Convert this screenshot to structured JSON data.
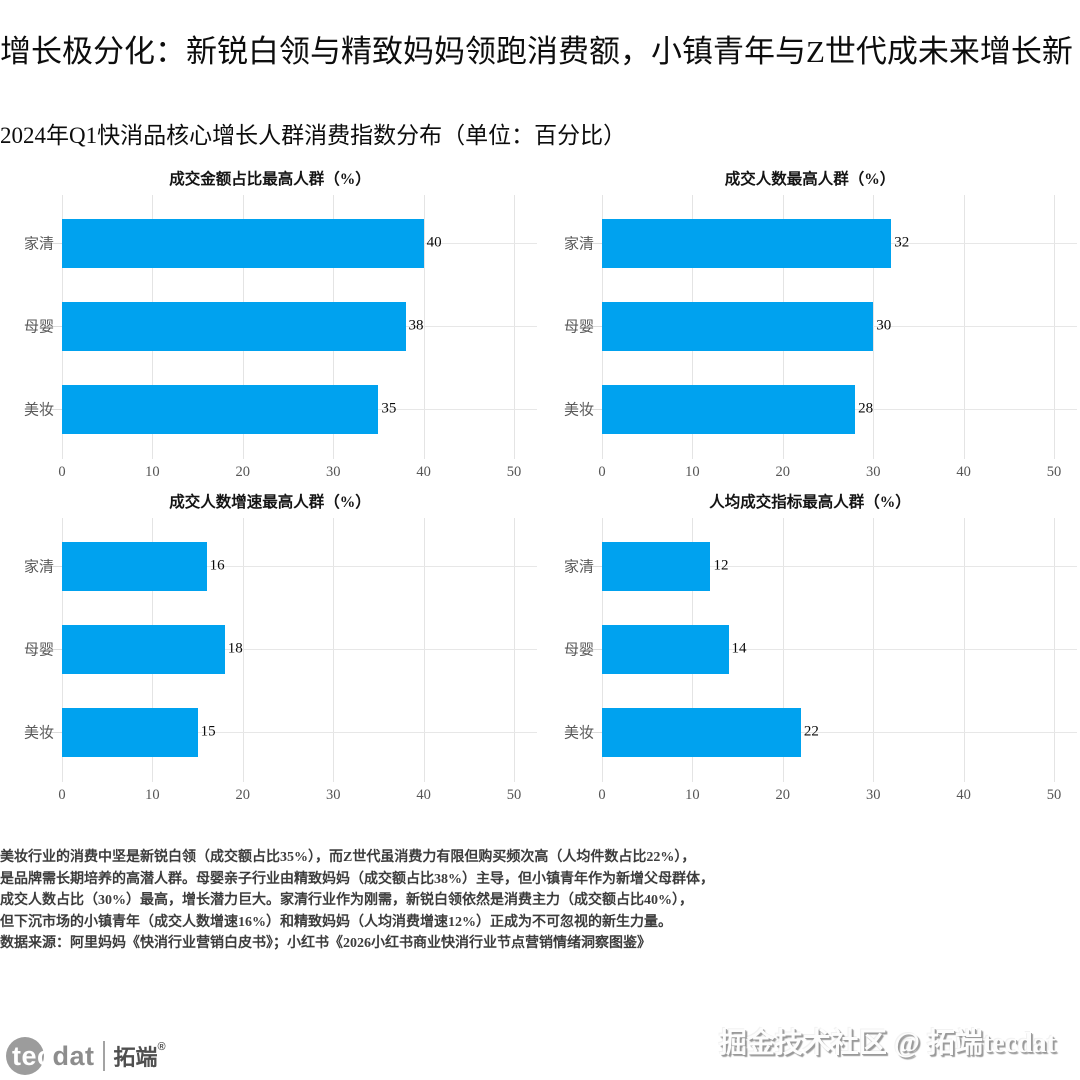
{
  "header": {
    "title": "增长极分化：新锐白领与精致妈妈领跑消费额，小镇青年与Z世代成未来增长新",
    "subtitle": "2024年Q1快消品核心增长人群消费指数分布（单位：百分比）"
  },
  "chart_data": [
    {
      "type": "bar",
      "orientation": "horizontal",
      "title": "成交金额占比最高人群（%）",
      "categories": [
        "家清",
        "母婴",
        "美妆"
      ],
      "values": [
        40,
        38,
        35
      ],
      "xlim": [
        0,
        50
      ],
      "xticks": [
        0,
        10,
        20,
        30,
        40,
        50
      ],
      "grid": true,
      "legend": "none"
    },
    {
      "type": "bar",
      "orientation": "horizontal",
      "title": "成交人数最高人群（%）",
      "categories": [
        "家清",
        "母婴",
        "美妆"
      ],
      "values": [
        32,
        30,
        28
      ],
      "xlim": [
        0,
        50
      ],
      "xticks": [
        0,
        10,
        20,
        30,
        40,
        50
      ],
      "grid": true,
      "legend": "none"
    },
    {
      "type": "bar",
      "orientation": "horizontal",
      "title": "成交人数增速最高人群（%）",
      "categories": [
        "家清",
        "母婴",
        "美妆"
      ],
      "values": [
        16,
        18,
        15
      ],
      "xlim": [
        0,
        50
      ],
      "xticks": [
        0,
        10,
        20,
        30,
        40,
        50
      ],
      "grid": true,
      "legend": "none"
    },
    {
      "type": "bar",
      "orientation": "horizontal",
      "title": "人均成交指标最高人群（%）",
      "categories": [
        "家清",
        "母婴",
        "美妆"
      ],
      "values": [
        12,
        14,
        22
      ],
      "xlim": [
        0,
        50
      ],
      "xticks": [
        0,
        10,
        20,
        30,
        40,
        50
      ],
      "grid": true,
      "legend": "none"
    }
  ],
  "footnote": {
    "lines": [
      "美妆行业的消费中坚是新锐白领（成交额占比35%），而Z世代虽消费力有限但购买频次高（人均件数占比22%），",
      "是品牌需长期培养的高潜人群。母婴亲子行业由精致妈妈（成交额占比38%）主导，但小镇青年作为新增父母群体，",
      "成交人数占比（30%）最高，增长潜力巨大。家清行业作为刚需，新锐白领依然是消费主力（成交额占比40%），",
      "但下沉市场的小镇青年（成交人数增速16%）和精致妈妈（人均消费增速12%）正成为不可忽视的新生力量。",
      "数据来源：阿里妈妈《快消行业营销白皮书》；小红书《2026小红书商业快消行业节点营销情绪洞察图鉴》"
    ]
  },
  "footer": {
    "logo": {
      "latin_prefix": "tec",
      "latin_suffix": "dat",
      "cn_name": "拓端",
      "reg_mark": "®"
    },
    "watermark": "掘金技术社区 @ 拓端tecdat"
  },
  "colors": {
    "bar": "#00a2ef",
    "gridline": "#e4e4e4",
    "axis_text": "#555555",
    "value_label": "#0a0a0a"
  }
}
